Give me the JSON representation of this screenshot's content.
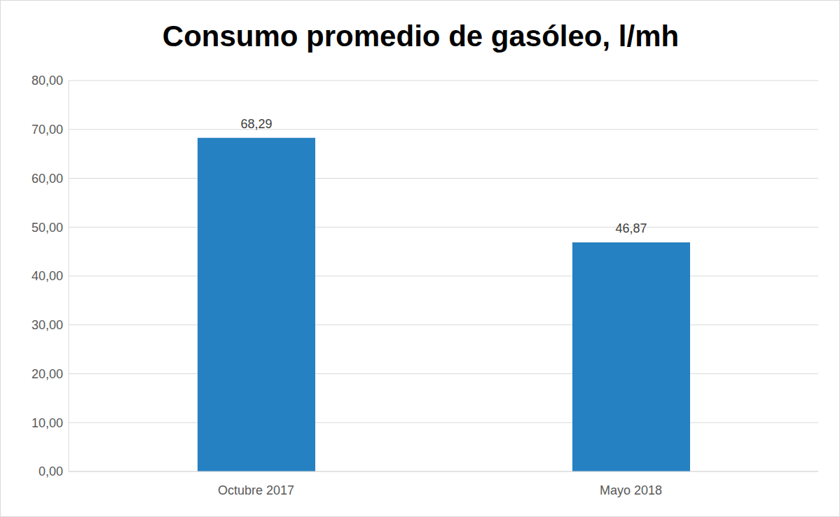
{
  "chart_data": {
    "type": "bar",
    "title": "Consumo promedio de gasóleo, l/mh",
    "categories": [
      "Octubre 2017",
      "Mayo 2018"
    ],
    "values": [
      68.29,
      46.87
    ],
    "value_labels": [
      "68,29",
      "46,87"
    ],
    "color": "#2681c2",
    "ylim": [
      0,
      80
    ],
    "yticks": [
      {
        "value": 0,
        "label": "0,00"
      },
      {
        "value": 10,
        "label": "10,00"
      },
      {
        "value": 20,
        "label": "20,00"
      },
      {
        "value": 30,
        "label": "30,00"
      },
      {
        "value": 40,
        "label": "40,00"
      },
      {
        "value": 50,
        "label": "50,00"
      },
      {
        "value": 60,
        "label": "60,00"
      },
      {
        "value": 70,
        "label": "70,00"
      },
      {
        "value": 80,
        "label": "80,00"
      }
    ],
    "grid": true,
    "data_labels": true
  }
}
